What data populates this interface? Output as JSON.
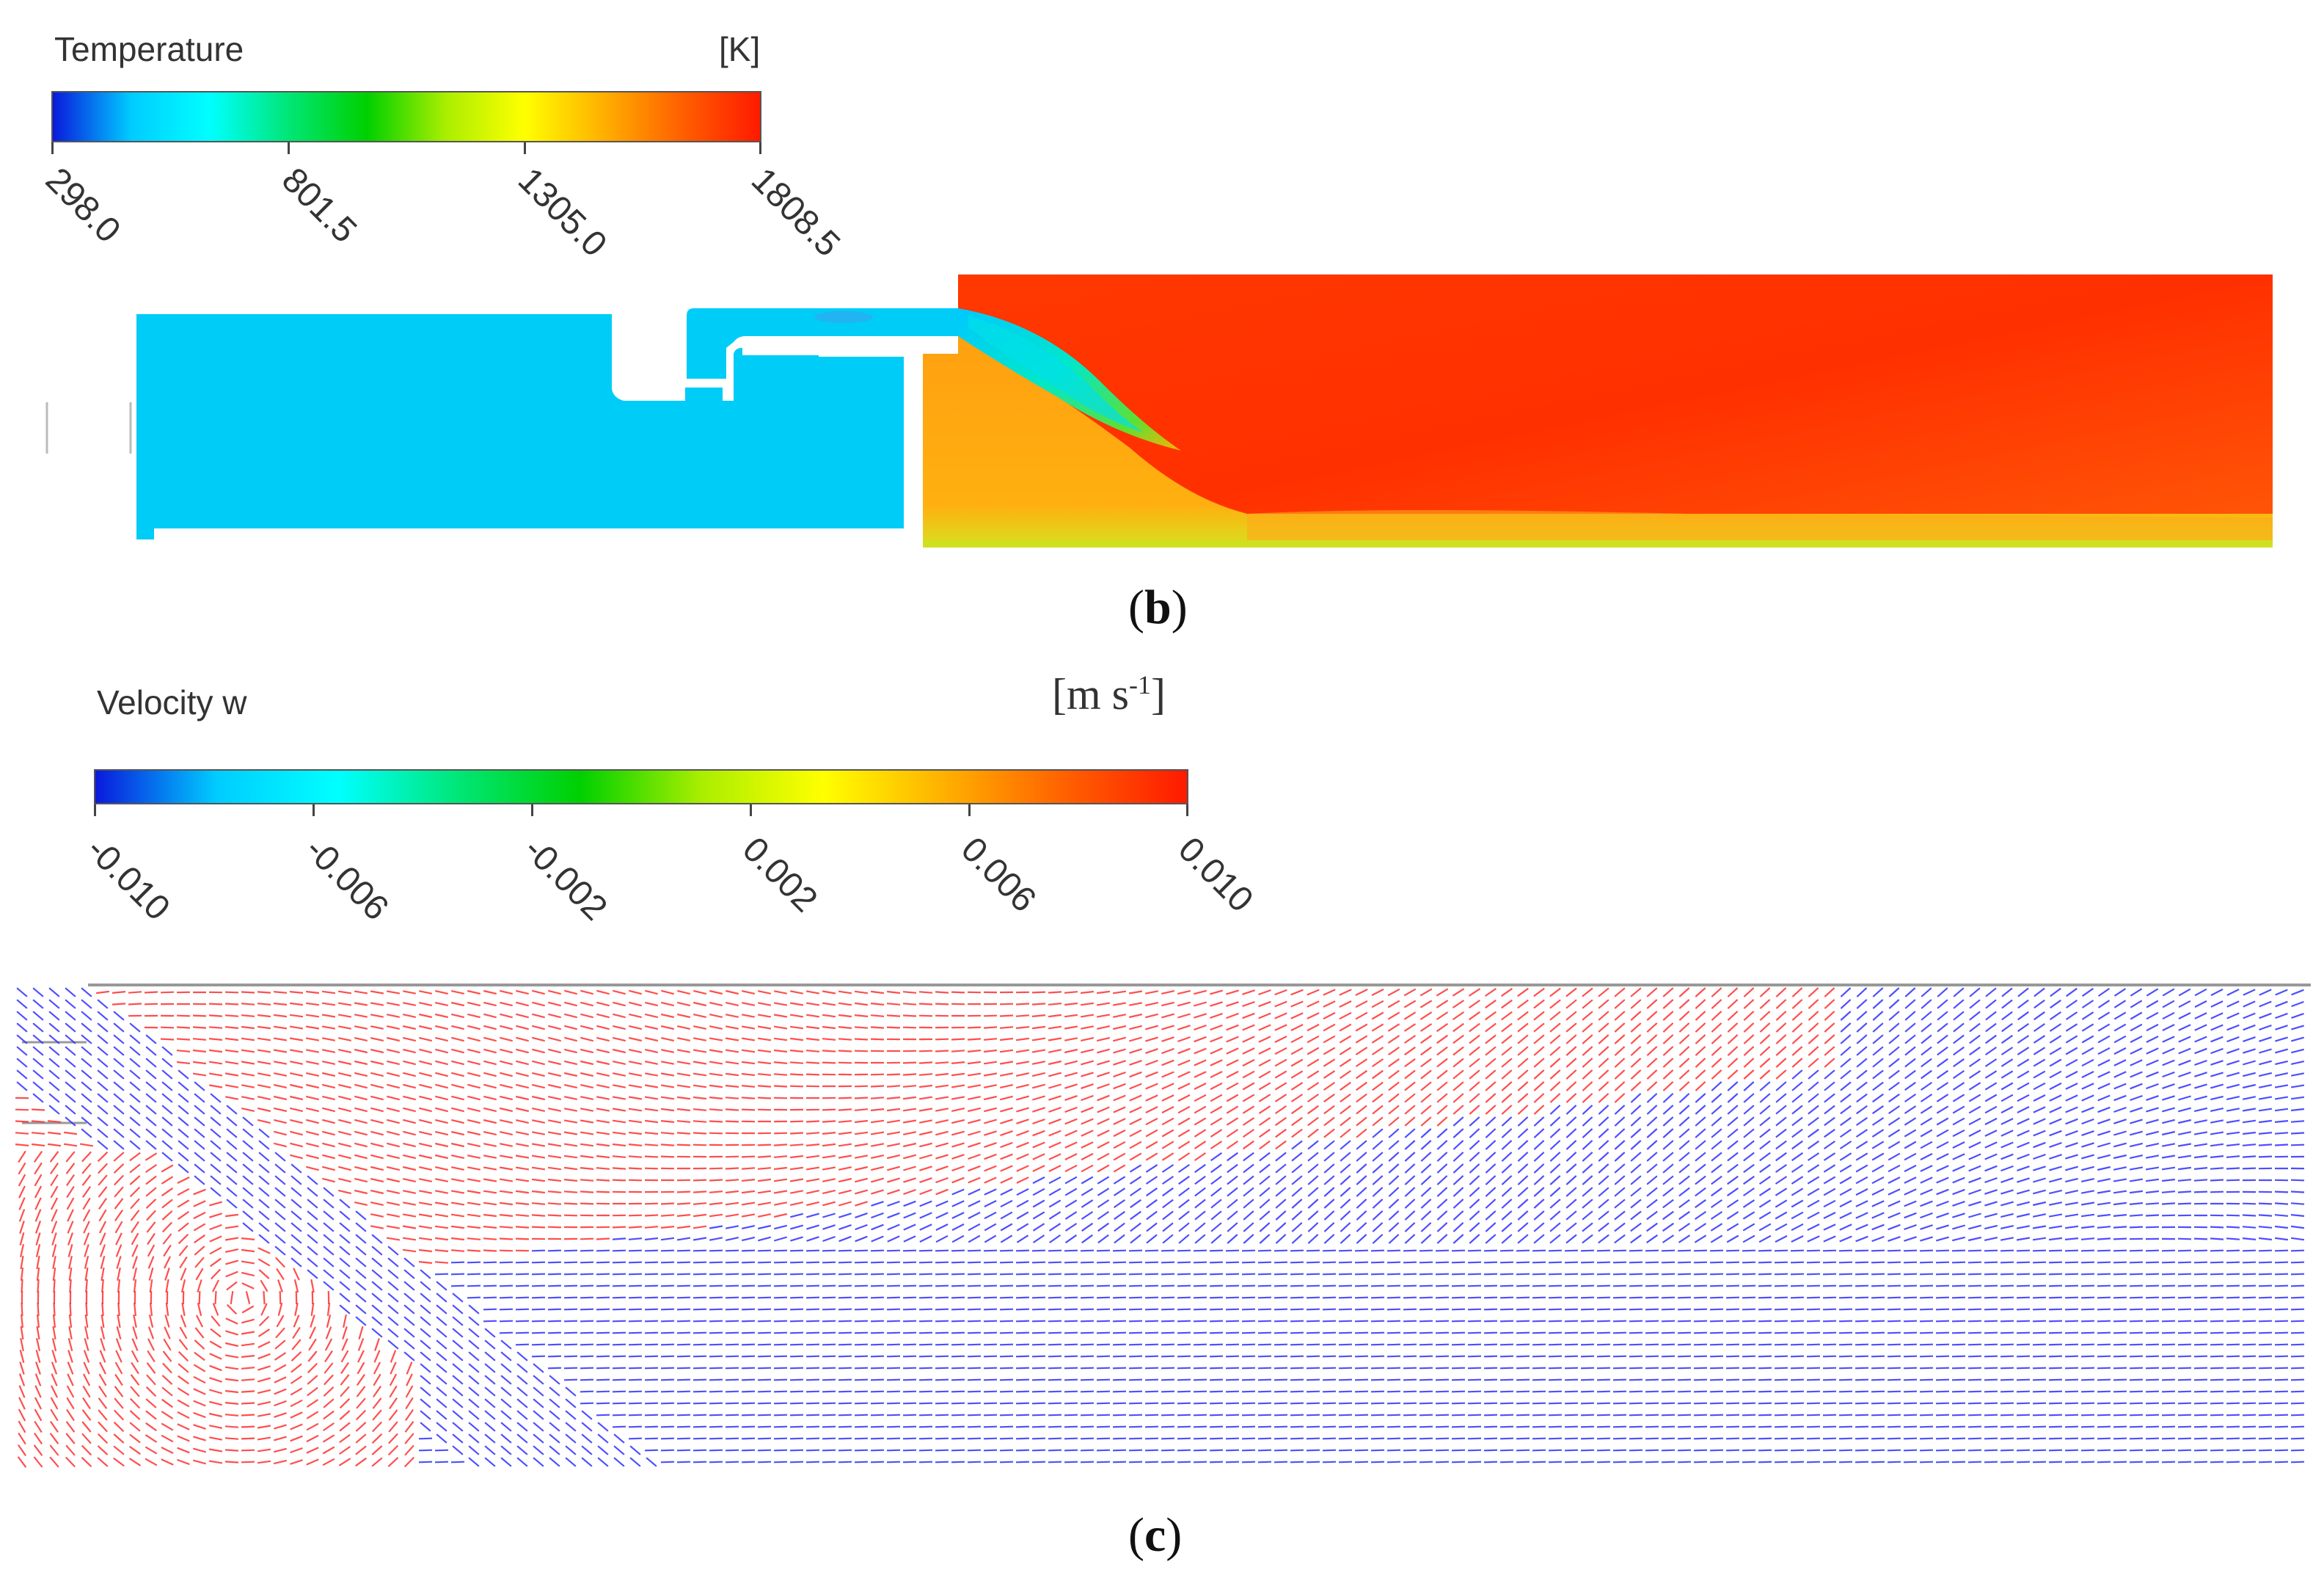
{
  "panel_b": {
    "legend": {
      "title": "Temperature",
      "unit": "[K]",
      "ticks": [
        "298.0",
        "801.5",
        "1305.0",
        "1808.5"
      ],
      "colormap": [
        "#0a1adc",
        "#00ccff",
        "#00ffff",
        "#00e676",
        "#00d000",
        "#aaee00",
        "#ffff00",
        "#ffb000",
        "#ff6000",
        "#ff1a00"
      ]
    },
    "caption_open": "(",
    "caption_letter": "b",
    "caption_close": ")"
  },
  "panel_c": {
    "legend": {
      "title": "Velocity w",
      "unit_base": "[m s",
      "unit_sup": "-1",
      "unit_close": "]",
      "ticks": [
        "-0.010",
        "-0.006",
        "-0.002",
        "0.002",
        "0.006",
        "0.010"
      ],
      "colormap": [
        "#0a1adc",
        "#00ccff",
        "#00ffff",
        "#00e676",
        "#00d000",
        "#aaee00",
        "#ffff00",
        "#ffb000",
        "#ff6000",
        "#ff1a00"
      ]
    },
    "vector_colors": {
      "positive": "#ff3030",
      "negative": "#3030ff"
    },
    "caption_open": "(",
    "caption_letter": "c",
    "caption_close": ")"
  }
}
